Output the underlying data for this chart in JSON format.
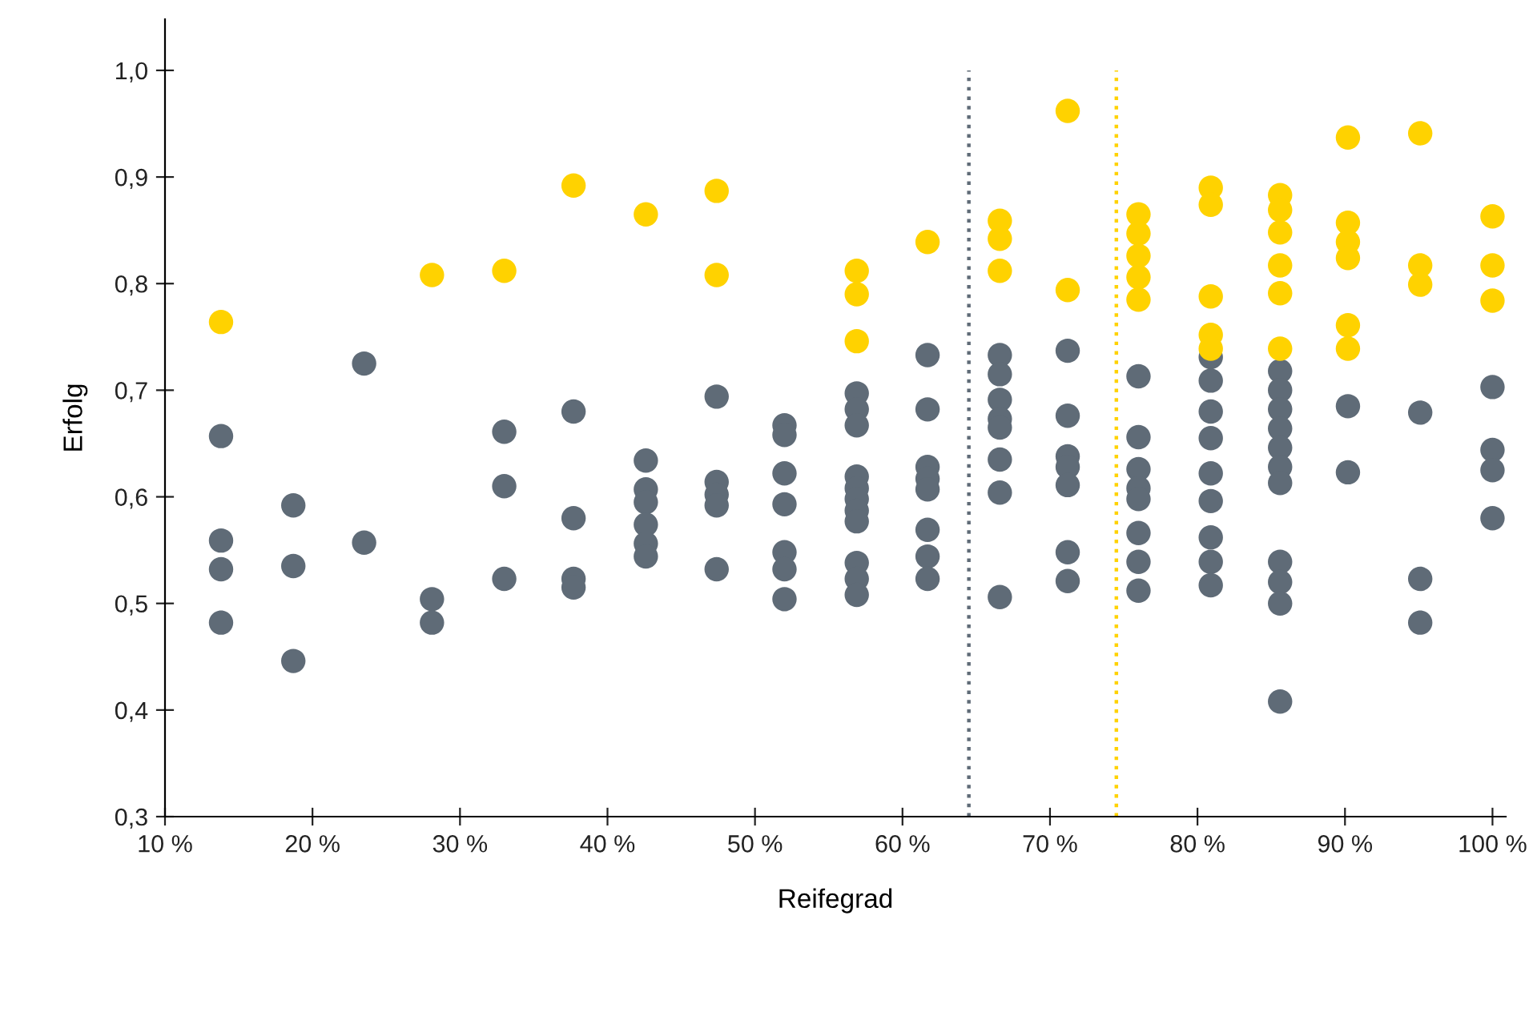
{
  "chart_data": {
    "type": "scatter",
    "xlabel": "Reifegrad",
    "ylabel": "Erfolg",
    "xlim": [
      10,
      100.9
    ],
    "ylim": [
      0.3,
      1.048
    ],
    "xticks": [
      {
        "value": 10,
        "label": "10 %"
      },
      {
        "value": 20,
        "label": "20 %"
      },
      {
        "value": 30,
        "label": "30 %"
      },
      {
        "value": 40,
        "label": "40 %"
      },
      {
        "value": 50,
        "label": "50 %"
      },
      {
        "value": 60,
        "label": "60 %"
      },
      {
        "value": 70,
        "label": "70 %"
      },
      {
        "value": 80,
        "label": "80 %"
      },
      {
        "value": 90,
        "label": "90 %"
      },
      {
        "value": 100,
        "label": "100 %"
      }
    ],
    "yticks": [
      {
        "value": 0.3,
        "label": "0,3"
      },
      {
        "value": 0.4,
        "label": "0,4"
      },
      {
        "value": 0.5,
        "label": "0,5"
      },
      {
        "value": 0.6,
        "label": "0,6"
      },
      {
        "value": 0.7,
        "label": "0,7"
      },
      {
        "value": 0.8,
        "label": "0,8"
      },
      {
        "value": 0.9,
        "label": "0,9"
      },
      {
        "value": 1.0,
        "label": "1,0"
      }
    ],
    "grid": false,
    "legend": false,
    "marker": "circle",
    "series": [
      {
        "color": "#5f6b77",
        "x": [
          13.8,
          13.8,
          13.8,
          13.8,
          18.7,
          18.7,
          18.7,
          23.5,
          23.5,
          28.1,
          28.1,
          33.0,
          33.0,
          33.0,
          37.7,
          37.7,
          37.7,
          37.7,
          42.6,
          42.6,
          42.6,
          42.6,
          42.6,
          42.6,
          47.4,
          47.4,
          47.4,
          47.4,
          47.4,
          52.0,
          52.0,
          52.0,
          52.0,
          52.0,
          52.0,
          52.0,
          56.9,
          56.9,
          56.9,
          56.9,
          56.9,
          56.9,
          56.9,
          56.9,
          56.9,
          56.9,
          56.9,
          61.7,
          61.7,
          61.7,
          61.7,
          61.7,
          61.7,
          61.7,
          61.7,
          66.6,
          66.6,
          66.6,
          66.6,
          66.6,
          66.6,
          66.6,
          66.6,
          71.2,
          71.2,
          71.2,
          71.2,
          71.2,
          71.2,
          71.2,
          76.0,
          76.0,
          76.0,
          76.0,
          76.0,
          76.0,
          76.0,
          76.0,
          80.9,
          80.9,
          80.9,
          80.9,
          80.9,
          80.9,
          80.9,
          80.9,
          80.9,
          85.6,
          85.6,
          85.6,
          85.6,
          85.6,
          85.6,
          85.6,
          85.6,
          85.6,
          85.6,
          85.6,
          90.2,
          90.2,
          95.1,
          95.1,
          95.1,
          100,
          100,
          100,
          100
        ],
        "values": [
          0.657,
          0.559,
          0.532,
          0.482,
          0.592,
          0.535,
          0.446,
          0.725,
          0.557,
          0.504,
          0.482,
          0.661,
          0.61,
          0.523,
          0.68,
          0.58,
          0.523,
          0.515,
          0.634,
          0.607,
          0.595,
          0.574,
          0.556,
          0.544,
          0.694,
          0.614,
          0.602,
          0.592,
          0.532,
          0.667,
          0.658,
          0.622,
          0.593,
          0.548,
          0.532,
          0.504,
          0.697,
          0.682,
          0.667,
          0.619,
          0.608,
          0.598,
          0.587,
          0.577,
          0.538,
          0.523,
          0.508,
          0.733,
          0.682,
          0.628,
          0.617,
          0.607,
          0.569,
          0.544,
          0.523,
          0.733,
          0.715,
          0.691,
          0.673,
          0.665,
          0.635,
          0.604,
          0.506,
          0.737,
          0.676,
          0.638,
          0.628,
          0.611,
          0.548,
          0.521,
          0.713,
          0.656,
          0.626,
          0.608,
          0.598,
          0.566,
          0.539,
          0.512,
          0.731,
          0.709,
          0.68,
          0.655,
          0.622,
          0.596,
          0.562,
          0.539,
          0.517,
          0.718,
          0.7,
          0.682,
          0.664,
          0.646,
          0.628,
          0.613,
          0.539,
          0.52,
          0.5,
          0.408,
          0.685,
          0.623,
          0.679,
          0.523,
          0.482,
          0.703,
          0.644,
          0.625,
          0.58
        ]
      },
      {
        "color": "#ffd200",
        "x": [
          13.8,
          28.1,
          33.0,
          37.7,
          42.6,
          47.4,
          47.4,
          56.9,
          56.9,
          56.9,
          61.7,
          66.6,
          66.6,
          66.6,
          71.2,
          71.2,
          76.0,
          76.0,
          76.0,
          76.0,
          76.0,
          80.9,
          80.9,
          80.9,
          80.9,
          80.9,
          85.6,
          85.6,
          85.6,
          85.6,
          85.6,
          85.6,
          90.2,
          90.2,
          90.2,
          90.2,
          90.2,
          90.2,
          95.1,
          95.1,
          95.1,
          100,
          100,
          100
        ],
        "values": [
          0.764,
          0.808,
          0.812,
          0.892,
          0.865,
          0.887,
          0.808,
          0.812,
          0.79,
          0.746,
          0.839,
          0.859,
          0.842,
          0.812,
          0.962,
          0.794,
          0.865,
          0.847,
          0.826,
          0.806,
          0.785,
          0.89,
          0.874,
          0.788,
          0.752,
          0.739,
          0.883,
          0.869,
          0.848,
          0.817,
          0.791,
          0.739,
          0.937,
          0.857,
          0.839,
          0.824,
          0.761,
          0.739,
          0.941,
          0.817,
          0.799,
          0.863,
          0.817,
          0.784
        ]
      }
    ],
    "ref_lines": [
      {
        "axis": "x",
        "value": 64.5,
        "color": "#5f6b77",
        "line_style": "dotted"
      },
      {
        "axis": "x",
        "value": 74.5,
        "color": "#ffd200",
        "line_style": "dotted"
      }
    ]
  }
}
